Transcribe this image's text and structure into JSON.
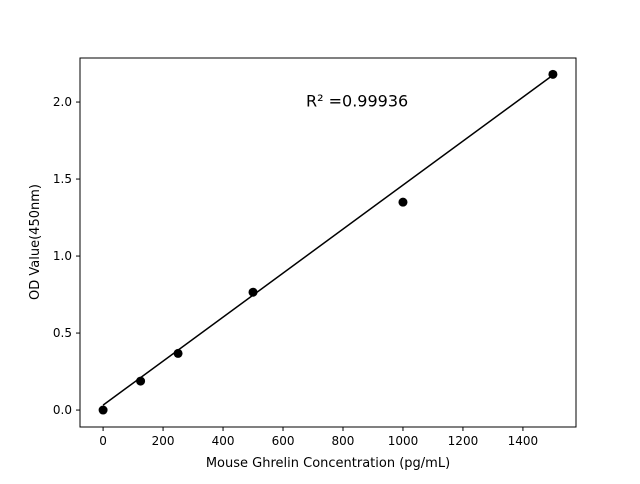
{
  "chart_data": {
    "type": "scatter",
    "title": "",
    "xlabel": "Mouse Ghrelin Concentration (pg/mL)",
    "ylabel": "OD Value(450nm)",
    "xlim": [
      -77,
      1577
    ],
    "ylim": [
      -0.11,
      2.286
    ],
    "xticks": [
      0,
      200,
      400,
      600,
      800,
      1000,
      1200,
      1400
    ],
    "yticks": [
      0.0,
      0.5,
      1.0,
      1.5,
      2.0
    ],
    "xtick_labels": [
      "0",
      "200",
      "400",
      "600",
      "800",
      "1000",
      "1200",
      "1400"
    ],
    "ytick_labels": [
      "0.0",
      "0.5",
      "1.0",
      "1.5",
      "2.0"
    ],
    "grid": false,
    "series": [
      {
        "type": "scatter",
        "color": "#000000",
        "x": [
          0,
          125,
          250,
          500,
          1000,
          1500
        ],
        "y": [
          0.0,
          0.188,
          0.368,
          0.765,
          1.35,
          2.18
        ]
      },
      {
        "type": "line",
        "color": "#000000",
        "x": [
          0,
          1500
        ],
        "y": [
          0.032,
          2.175
        ]
      }
    ],
    "annotations": [
      {
        "text": "R² =0.99936",
        "x": 750,
        "y": 1.97
      }
    ]
  }
}
